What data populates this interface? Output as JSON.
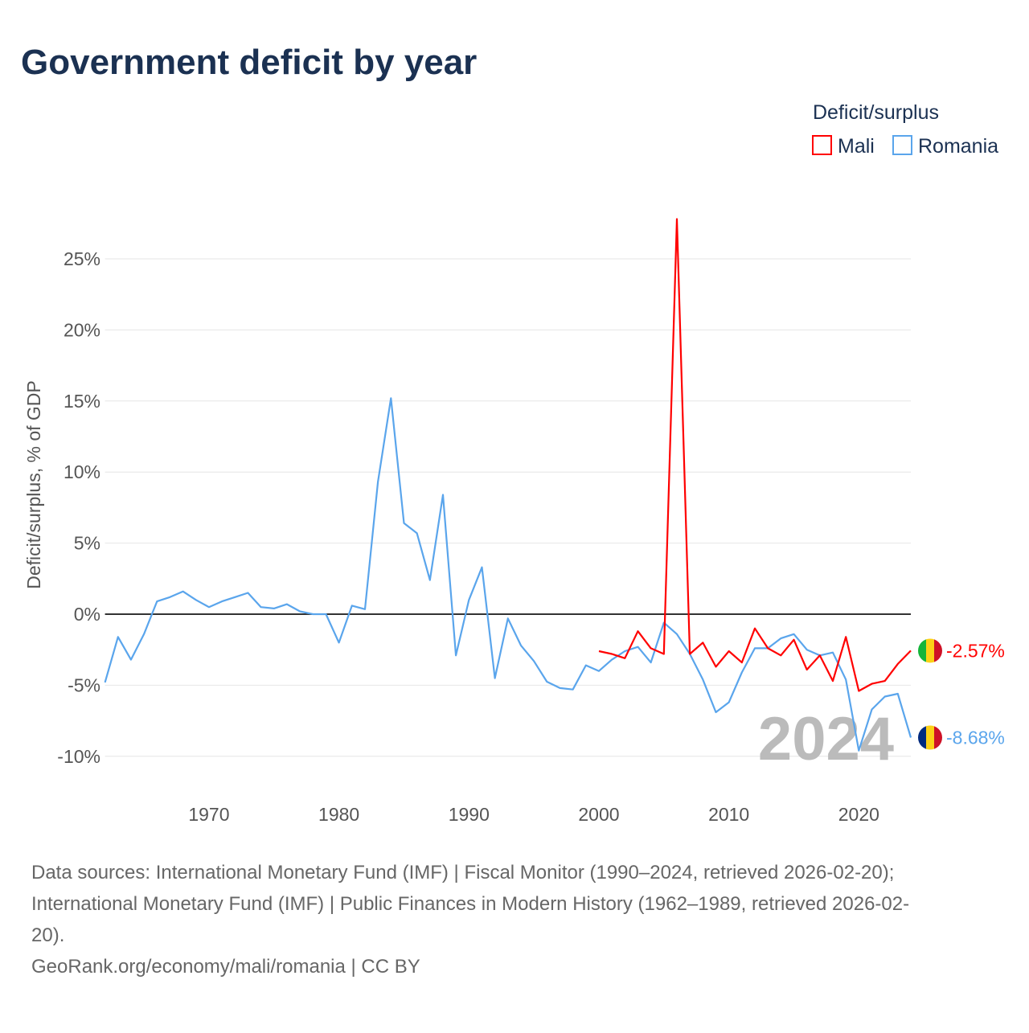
{
  "title": "Government deficit by year",
  "legend": {
    "title": "Deficit/surplus",
    "position": "top-right"
  },
  "footer": [
    "Data sources: International Monetary Fund (IMF) | Fiscal Monitor (1990–2024, retrieved 2026-02-20);",
    "International Monetary Fund (IMF) | Public Finances in Modern History (1962–1989, retrieved 2026-02-",
    "20).",
    "GeoRank.org/economy/mali/romania | CC BY"
  ],
  "chart_data": {
    "type": "line",
    "title": "Government deficit by year",
    "ylabel": "Deficit/surplus, % of GDP",
    "xlabel": "",
    "xlim": [
      1962,
      2024
    ],
    "ylim": [
      -12,
      28
    ],
    "yticks": [
      -10,
      -5,
      0,
      5,
      10,
      15,
      20,
      25
    ],
    "ytick_labels": [
      "-10%",
      "-5%",
      "0%",
      "5%",
      "10%",
      "15%",
      "20%",
      "25%"
    ],
    "xticks": [
      1970,
      1980,
      1990,
      2000,
      2010,
      2020
    ],
    "xtick_labels": [
      "1970",
      "1980",
      "1990",
      "2000",
      "2010",
      "2020"
    ],
    "grid": true,
    "year_watermark": "2024",
    "series": [
      {
        "name": "Mali",
        "color": "#ff0000",
        "flag": [
          "#14b53a",
          "#fcd116",
          "#ce1126"
        ],
        "end_label": "-2.57%",
        "start_year": 2000,
        "values": [
          -2.6,
          -2.8,
          -3.1,
          -1.2,
          -2.4,
          -2.8,
          27.8,
          -2.8,
          -2.0,
          -3.7,
          -2.6,
          -3.4,
          -1.0,
          -2.4,
          -2.9,
          -1.8,
          -3.9,
          -2.9,
          -4.7,
          -1.6,
          -5.4,
          -4.9,
          -4.7,
          -3.5,
          -2.57
        ]
      },
      {
        "name": "Romania",
        "color": "#5aa5ec",
        "flag": [
          "#002b7f",
          "#fcd116",
          "#ce1126"
        ],
        "end_label": "-8.68%",
        "start_year": 1962,
        "values": [
          -4.8,
          -1.6,
          -3.2,
          -1.4,
          0.9,
          1.2,
          1.6,
          1.0,
          0.5,
          0.9,
          1.2,
          1.5,
          0.5,
          0.4,
          0.7,
          0.2,
          0.0,
          0.0,
          -2.0,
          0.6,
          0.35,
          9.3,
          15.2,
          6.4,
          5.7,
          2.4,
          8.4,
          -2.9,
          1.0,
          3.3,
          -4.5,
          -0.3,
          -2.2,
          -3.3,
          -4.75,
          -5.2,
          -5.3,
          -3.6,
          -4.0,
          -3.2,
          -2.6,
          -2.3,
          -3.4,
          -0.6,
          -1.4,
          -2.8,
          -4.6,
          -6.9,
          -6.2,
          -4.1,
          -2.4,
          -2.4,
          -1.7,
          -1.4,
          -2.5,
          -2.9,
          -2.7,
          -4.6,
          -9.6,
          -6.7,
          -5.8,
          -5.6,
          -8.68
        ]
      }
    ]
  }
}
